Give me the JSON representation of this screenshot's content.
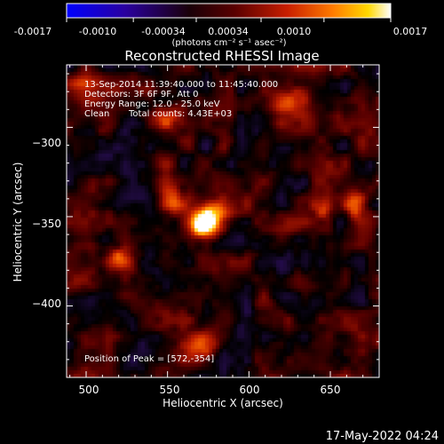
{
  "colorbar": {
    "ticks": [
      "-0.0017",
      "-0.0010",
      "-0.00034",
      "0.00034",
      "0.0010",
      "0.0017"
    ],
    "units": "(photons cm⁻² s⁻¹ asec⁻²)",
    "range": [
      -0.0017,
      0.0017
    ]
  },
  "chart_data": {
    "type": "heatmap",
    "title": "Reconstructed RHESSI Image",
    "xlabel": "Heliocentric X (arcsec)",
    "ylabel": "Heliocentric Y (arcsec)",
    "xlim": [
      488,
      680
    ],
    "ylim": [
      -440,
      -265
    ],
    "xticks": [
      500,
      550,
      600,
      650
    ],
    "xtick_labels": [
      "500",
      "550",
      "600",
      "650"
    ],
    "yticks": [
      -300,
      -350,
      -400
    ],
    "ytick_labels": [
      "−300",
      "−350",
      "−400"
    ],
    "annotations": [
      "13-Sep-2014 11:39:40.000 to 11:45:40.000",
      "Detectors: 3F 6F 9F, Att 0",
      "Energy Range: 12.0 - 25.0 keV",
      "Clean",
      "Total counts: 4.43E+03"
    ],
    "peak_label": "Position of Peak = [572,-354]",
    "peak": [
      572,
      -354
    ],
    "sources": [
      {
        "x": 572,
        "y": -354,
        "sx": 7,
        "sy": 6,
        "amp": 1.0
      },
      {
        "x": 581,
        "y": -346,
        "sx": 6,
        "sy": 5,
        "amp": 0.45
      },
      {
        "x": 623,
        "y": -286,
        "sx": 9,
        "sy": 6,
        "amp": 0.55
      },
      {
        "x": 549,
        "y": -293,
        "sx": 6,
        "sy": 5,
        "amp": 0.4
      },
      {
        "x": 665,
        "y": -343,
        "sx": 5,
        "sy": 5,
        "amp": 0.6
      },
      {
        "x": 646,
        "y": -345,
        "sx": 4,
        "sy": 4,
        "amp": 0.35
      },
      {
        "x": 519,
        "y": -374,
        "sx": 6,
        "sy": 5,
        "amp": 0.45
      },
      {
        "x": 567,
        "y": -423,
        "sx": 9,
        "sy": 6,
        "amp": 0.45
      },
      {
        "x": 500,
        "y": -275,
        "sx": 7,
        "sy": 6,
        "amp": 0.35
      },
      {
        "x": 553,
        "y": -341,
        "sx": 5,
        "sy": 5,
        "amp": 0.3
      }
    ]
  },
  "timestamp": "17-May-2022 04:24"
}
